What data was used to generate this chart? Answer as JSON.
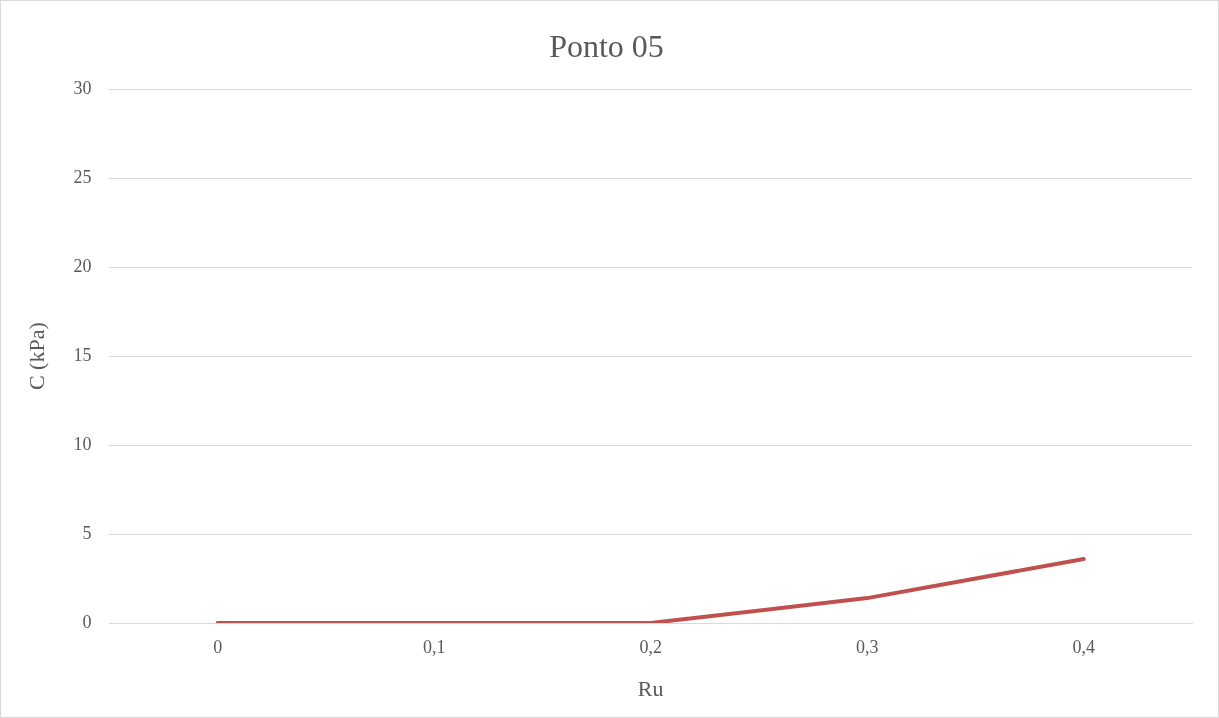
{
  "chart_data": {
    "type": "line",
    "title": "Ponto 05",
    "xlabel": "Ru",
    "ylabel": "C (kPa)",
    "categories": [
      "0",
      "0,1",
      "0,2",
      "0,3",
      "0,4"
    ],
    "series": [
      {
        "color": "#c0504d",
        "values": [
          0,
          0,
          0,
          1.4,
          3.6
        ]
      }
    ],
    "ylim": [
      0,
      30
    ],
    "yticks": [
      0,
      5,
      10,
      15,
      20,
      25,
      30
    ],
    "grid": "y",
    "legend": false,
    "marker": "none"
  }
}
